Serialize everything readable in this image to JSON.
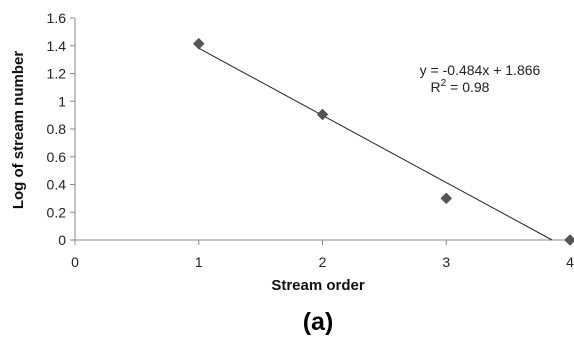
{
  "chart_data": {
    "type": "scatter",
    "xlabel": "Stream order",
    "ylabel": "Log of stream number",
    "xlim": [
      0,
      4
    ],
    "ylim": [
      0,
      1.6
    ],
    "x_ticks": [
      "0",
      "1",
      "2",
      "3",
      "4"
    ],
    "y_ticks": [
      "0",
      "0.2",
      "0.4",
      "0.6",
      "0.8",
      "1",
      "1.2",
      "1.4",
      "1.6"
    ],
    "points": [
      {
        "x": 1,
        "y": 1.415
      },
      {
        "x": 2,
        "y": 0.905
      },
      {
        "x": 3,
        "y": 0.3
      },
      {
        "x": 4,
        "y": 0
      }
    ],
    "trendline": {
      "slope": -0.484,
      "intercept": 1.866
    },
    "equation_label": "y = -0.484x + 1.866",
    "r2_prefix": "R",
    "r2_exponent": "2",
    "r2_suffix": " = 0.98",
    "grid": false,
    "marker": "diamond",
    "marker_color": "#555555",
    "line_color": "#222222"
  },
  "caption": "(a)"
}
